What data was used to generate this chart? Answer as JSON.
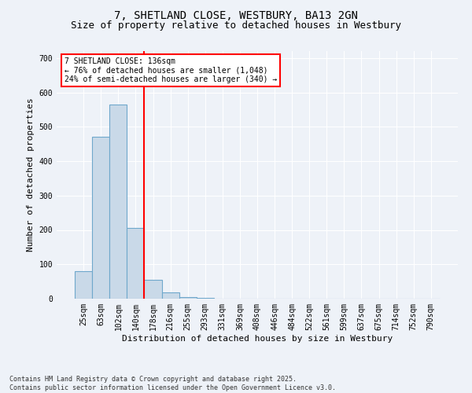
{
  "title_line1": "7, SHETLAND CLOSE, WESTBURY, BA13 2GN",
  "title_line2": "Size of property relative to detached houses in Westbury",
  "xlabel": "Distribution of detached houses by size in Westbury",
  "ylabel": "Number of detached properties",
  "bar_labels": [
    "25sqm",
    "63sqm",
    "102sqm",
    "140sqm",
    "178sqm",
    "216sqm",
    "255sqm",
    "293sqm",
    "331sqm",
    "369sqm",
    "408sqm",
    "446sqm",
    "484sqm",
    "522sqm",
    "561sqm",
    "599sqm",
    "637sqm",
    "675sqm",
    "714sqm",
    "752sqm",
    "790sqm"
  ],
  "bar_values": [
    80,
    470,
    565,
    205,
    55,
    18,
    5,
    2,
    1,
    1,
    0,
    0,
    0,
    0,
    0,
    0,
    0,
    0,
    0,
    0,
    0
  ],
  "bar_color": "#c9d9e8",
  "bar_edge_color": "#6fa8cc",
  "vline_color": "red",
  "vline_pos": 3.5,
  "annotation_text": "7 SHETLAND CLOSE: 136sqm\n← 76% of detached houses are smaller (1,048)\n24% of semi-detached houses are larger (340) →",
  "annotation_box_color": "white",
  "annotation_box_edge": "red",
  "ylim": [
    0,
    720
  ],
  "yticks": [
    0,
    100,
    200,
    300,
    400,
    500,
    600,
    700
  ],
  "footnote": "Contains HM Land Registry data © Crown copyright and database right 2025.\nContains public sector information licensed under the Open Government Licence v3.0.",
  "bg_color": "#eef2f8",
  "grid_color": "white",
  "title_fontsize": 10,
  "subtitle_fontsize": 9,
  "axis_label_fontsize": 8,
  "tick_fontsize": 7,
  "annot_fontsize": 7,
  "footnote_fontsize": 6
}
